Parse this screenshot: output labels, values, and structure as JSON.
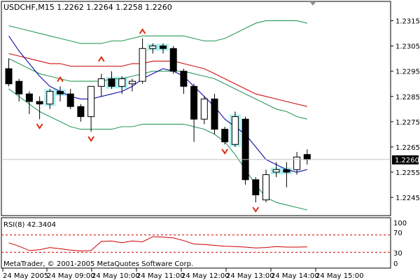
{
  "main_chart": {
    "header_text": "USDCHF,M15  1.2262 1.2264 1.2258 1.2260",
    "current_price": "1.2260",
    "price_ticks": [
      "1.2315",
      "1.2305",
      "1.2295",
      "1.2285",
      "1.2275",
      "1.2265",
      "1.2255",
      "1.2245"
    ]
  },
  "rsi_panel": {
    "label": "RSI(8) 42.3404",
    "levels": [
      "100",
      "70",
      "30",
      "0"
    ],
    "copyright": "MetaTrader, © 2001-2005 MetaQuotes Software Corp."
  },
  "time_axis": {
    "labels": [
      "24 May 2005",
      "24 May 09:00",
      "24 May 10:00",
      "24 May 11:00",
      "24 May 12:00",
      "24 May 13:00",
      "24 May 14:00",
      "24 May 15:00"
    ]
  },
  "colors": {
    "bull_fill": "#ffffff",
    "bear_fill": "#000000",
    "fast_ma": "#1010b0",
    "slow_ma": "#cc1010",
    "bands": "#2a9a5a",
    "rsi_line": "#d00000",
    "fractal": "#e03010",
    "highlight": "#b0f0f0"
  },
  "chart_data": {
    "type": "candlestick",
    "symbol": "USDCHF",
    "timeframe": "M15",
    "ylim": [
      1.224,
      1.2321
    ],
    "candles": [
      {
        "o": 1.2296,
        "h": 1.23,
        "l": 1.2289,
        "c": 1.229
      },
      {
        "o": 1.2291,
        "h": 1.2292,
        "l": 1.2283,
        "c": 1.2286
      },
      {
        "o": 1.2286,
        "h": 1.2287,
        "l": 1.2278,
        "c": 1.2283
      },
      {
        "o": 1.2283,
        "h": 1.2285,
        "l": 1.2276,
        "c": 1.2282
      },
      {
        "o": 1.2282,
        "h": 1.2288,
        "l": 1.228,
        "c": 1.2287
      },
      {
        "o": 1.2287,
        "h": 1.2289,
        "l": 1.2283,
        "c": 1.2286
      },
      {
        "o": 1.2286,
        "h": 1.2288,
        "l": 1.228,
        "c": 1.2281
      },
      {
        "o": 1.2281,
        "h": 1.2282,
        "l": 1.2275,
        "c": 1.2277
      },
      {
        "o": 1.2277,
        "h": 1.2289,
        "l": 1.2271,
        "c": 1.2289
      },
      {
        "o": 1.2289,
        "h": 1.2294,
        "l": 1.2285,
        "c": 1.2292
      },
      {
        "o": 1.2292,
        "h": 1.2295,
        "l": 1.2288,
        "c": 1.2289
      },
      {
        "o": 1.2289,
        "h": 1.2293,
        "l": 1.2286,
        "c": 1.2292
      },
      {
        "o": 1.229,
        "h": 1.2292,
        "l": 1.2287,
        "c": 1.2291
      },
      {
        "o": 1.2291,
        "h": 1.2308,
        "l": 1.229,
        "c": 1.2304
      },
      {
        "o": 1.2304,
        "h": 1.2306,
        "l": 1.2302,
        "c": 1.2305
      },
      {
        "o": 1.2305,
        "h": 1.2306,
        "l": 1.2302,
        "c": 1.2304
      },
      {
        "o": 1.2304,
        "h": 1.2305,
        "l": 1.2294,
        "c": 1.2295
      },
      {
        "o": 1.2295,
        "h": 1.2296,
        "l": 1.2286,
        "c": 1.2289
      },
      {
        "o": 1.2289,
        "h": 1.229,
        "l": 1.2267,
        "c": 1.2276
      },
      {
        "o": 1.2276,
        "h": 1.2285,
        "l": 1.2274,
        "c": 1.2284
      },
      {
        "o": 1.2284,
        "h": 1.2286,
        "l": 1.227,
        "c": 1.2272
      },
      {
        "o": 1.2272,
        "h": 1.2273,
        "l": 1.2266,
        "c": 1.2267
      },
      {
        "o": 1.2266,
        "h": 1.2279,
        "l": 1.2265,
        "c": 1.2277
      },
      {
        "o": 1.2276,
        "h": 1.2277,
        "l": 1.225,
        "c": 1.2252
      },
      {
        "o": 1.2252,
        "h": 1.2253,
        "l": 1.2243,
        "c": 1.2246
      },
      {
        "o": 1.2244,
        "h": 1.2256,
        "l": 1.2243,
        "c": 1.2254
      },
      {
        "o": 1.2255,
        "h": 1.2259,
        "l": 1.2253,
        "c": 1.2256
      },
      {
        "o": 1.2256,
        "h": 1.2259,
        "l": 1.2249,
        "c": 1.2255
      },
      {
        "o": 1.2256,
        "h": 1.2263,
        "l": 1.2254,
        "c": 1.2261
      },
      {
        "o": 1.2262,
        "h": 1.2264,
        "l": 1.2258,
        "c": 1.226
      }
    ],
    "fast_ma": [
      1.2309,
      1.2303,
      1.2298,
      1.2293,
      1.2289,
      1.2287,
      1.2285,
      1.2284,
      1.2284,
      1.2285,
      1.2286,
      1.2287,
      1.2289,
      1.2292,
      1.2294,
      1.2296,
      1.2295,
      1.2293,
      1.2289,
      1.2285,
      1.2281,
      1.2276,
      1.2273,
      1.227,
      1.2265,
      1.226,
      1.2258,
      1.2256,
      1.2255,
      1.2256
    ],
    "slow_ma": [
      1.2302,
      1.2301,
      1.23,
      1.2299,
      1.2298,
      1.2298,
      1.2297,
      1.2297,
      1.2297,
      1.2297,
      1.2297,
      1.2297,
      1.2298,
      1.2298,
      1.2299,
      1.2299,
      1.2299,
      1.2298,
      1.2297,
      1.2296,
      1.2294,
      1.2292,
      1.229,
      1.2288,
      1.2286,
      1.2285,
      1.2284,
      1.2283,
      1.2282,
      1.2281
    ],
    "band_upper": [
      1.2313,
      1.2312,
      1.2311,
      1.231,
      1.2309,
      1.2308,
      1.2307,
      1.2306,
      1.2306,
      1.2306,
      1.2307,
      1.2307,
      1.2308,
      1.2309,
      1.2309,
      1.2309,
      1.2309,
      1.2309,
      1.2308,
      1.2307,
      1.2307,
      1.2308,
      1.231,
      1.2312,
      1.2314,
      1.2315,
      1.2315,
      1.2315,
      1.2315,
      1.2314
    ],
    "band_mid": [
      1.23,
      1.2298,
      1.2296,
      1.2294,
      1.2293,
      1.2292,
      1.2291,
      1.2291,
      1.2291,
      1.2291,
      1.2292,
      1.2292,
      1.2293,
      1.2294,
      1.2295,
      1.2295,
      1.2295,
      1.2295,
      1.2294,
      1.2293,
      1.2292,
      1.229,
      1.2288,
      1.2286,
      1.2284,
      1.2282,
      1.228,
      1.2279,
      1.2277,
      1.2276
    ],
    "band_lower": [
      1.2288,
      1.2285,
      1.2282,
      1.2279,
      1.2277,
      1.2275,
      1.2273,
      1.2272,
      1.2272,
      1.2272,
      1.2272,
      1.2273,
      1.2273,
      1.2274,
      1.2274,
      1.2274,
      1.2274,
      1.2274,
      1.2273,
      1.2272,
      1.227,
      1.2267,
      1.2262,
      1.2256,
      1.225,
      1.2245,
      1.2243,
      1.2242,
      1.2241,
      1.224
    ],
    "highlight_candles": [
      4,
      5,
      10,
      11,
      14,
      15,
      22,
      26,
      27
    ],
    "fractals_up": [
      {
        "i": 5,
        "p": 1.2292
      },
      {
        "i": 9,
        "p": 1.23
      },
      {
        "i": 13,
        "p": 1.2311
      }
    ],
    "fractals_down": [
      {
        "i": 3,
        "p": 1.2273
      },
      {
        "i": 8,
        "p": 1.2268
      },
      {
        "i": 21,
        "p": 1.2263
      },
      {
        "i": 24,
        "p": 1.224
      }
    ],
    "rsi": [
      52,
      44,
      34,
      36,
      41,
      38,
      35,
      33,
      34,
      55,
      56,
      52,
      56,
      54,
      66,
      65,
      63,
      57,
      49,
      48,
      46,
      44,
      43,
      42,
      40,
      41,
      43,
      42,
      42,
      42.3404
    ],
    "rsi_levels": [
      70,
      30
    ]
  }
}
